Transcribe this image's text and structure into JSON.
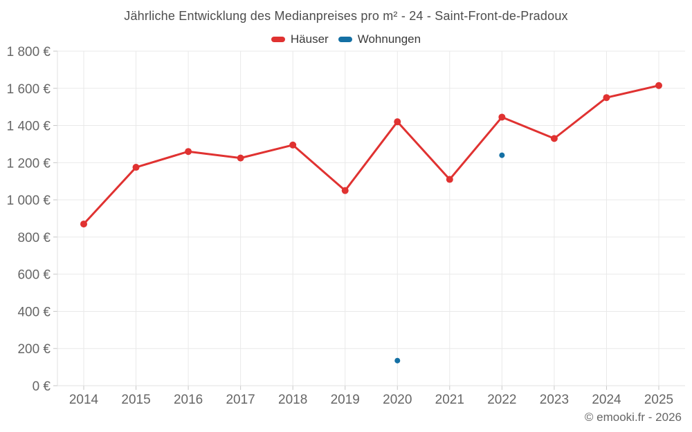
{
  "chart": {
    "title": "Jährliche Entwicklung des Medianpreises pro m² - 24 - Saint-Front-de-Pradoux",
    "copyright": "© emooki.fr - 2026"
  },
  "legend": {
    "items": [
      {
        "label": "Häuser",
        "color": "#e03231"
      },
      {
        "label": "Wohnungen",
        "color": "#1470a4"
      }
    ]
  },
  "colors": {
    "grid": "#e9e9e9",
    "axis": "#e0e0e0",
    "tick": "#c6c6c6",
    "tick_text": "#666666",
    "haeuser": "#e03231",
    "wohnungen": "#1470a4"
  },
  "chart_data": {
    "type": "line",
    "title": "Jährliche Entwicklung des Medianpreises pro m² - 24 - Saint-Front-de-Pradoux",
    "categories": [
      "2014",
      "2015",
      "2016",
      "2017",
      "2018",
      "2019",
      "2020",
      "2021",
      "2022",
      "2023",
      "2024",
      "2025"
    ],
    "series": [
      {
        "name": "Häuser",
        "type": "line",
        "color": "#e03231",
        "marker_radius": 5,
        "line_width": 3,
        "values": [
          870,
          1175,
          1260,
          1225,
          1295,
          1050,
          1420,
          1110,
          1445,
          1330,
          1550,
          1615
        ]
      },
      {
        "name": "Wohnungen",
        "type": "scatter",
        "color": "#1470a4",
        "marker_radius": 4,
        "line_width": 0,
        "values": [
          null,
          null,
          null,
          null,
          null,
          null,
          135,
          null,
          1240,
          null,
          null,
          null
        ]
      }
    ],
    "xlabel": "",
    "ylabel": "",
    "ylim": [
      0,
      1800
    ],
    "yticks": [
      0,
      200,
      400,
      600,
      800,
      1000,
      1200,
      1400,
      1600,
      1800
    ],
    "yticklabels": [
      "0 €",
      "200 €",
      "400 €",
      "600 €",
      "800 €",
      "1 000 €",
      "1 200 €",
      "1 400 €",
      "1 600 €",
      "1 800 €"
    ],
    "grid": true,
    "legend_position": "top"
  }
}
